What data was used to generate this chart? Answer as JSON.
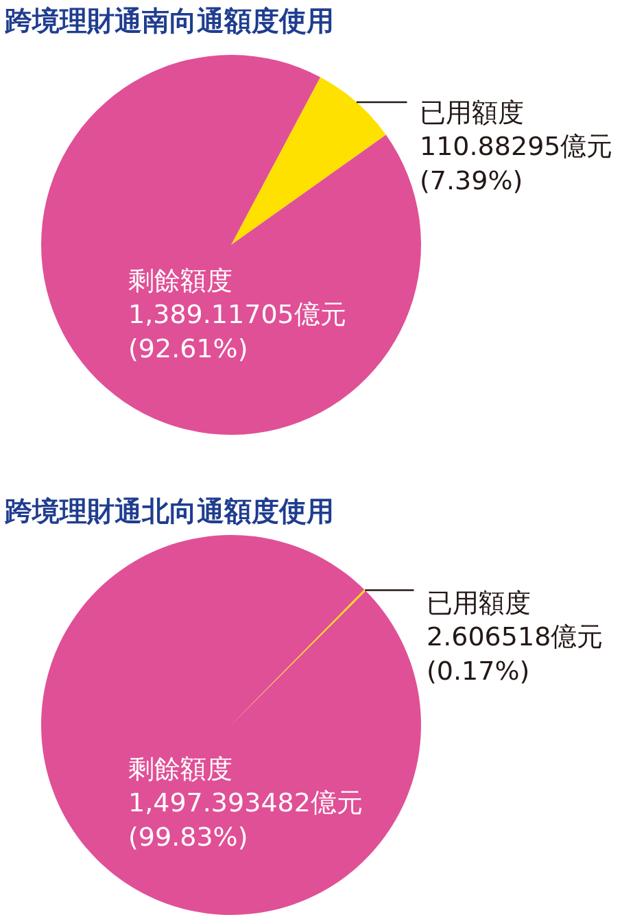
{
  "chart_data": [
    {
      "type": "pie",
      "title": "跨境理財通南向通額度使用",
      "categories": [
        "已用額度",
        "剩餘額度"
      ],
      "values": [
        110.88295,
        1389.11705
      ],
      "colors": [
        "#ffe100",
        "#e05096"
      ],
      "value_labels": [
        "110.88295億元\n(7.39%)",
        "1,389.11705億元\n(92.61%)"
      ]
    },
    {
      "type": "pie",
      "title": "跨境理財通北向通額度使用",
      "categories": [
        "已用額度",
        "剩餘額度"
      ],
      "values": [
        2.606518,
        1497.393482
      ],
      "colors": [
        "#ffe100",
        "#e05096"
      ],
      "value_labels": [
        "2.606518億元\n(0.17%)",
        "1,497.393482億元\n(99.83%)"
      ]
    }
  ]
}
